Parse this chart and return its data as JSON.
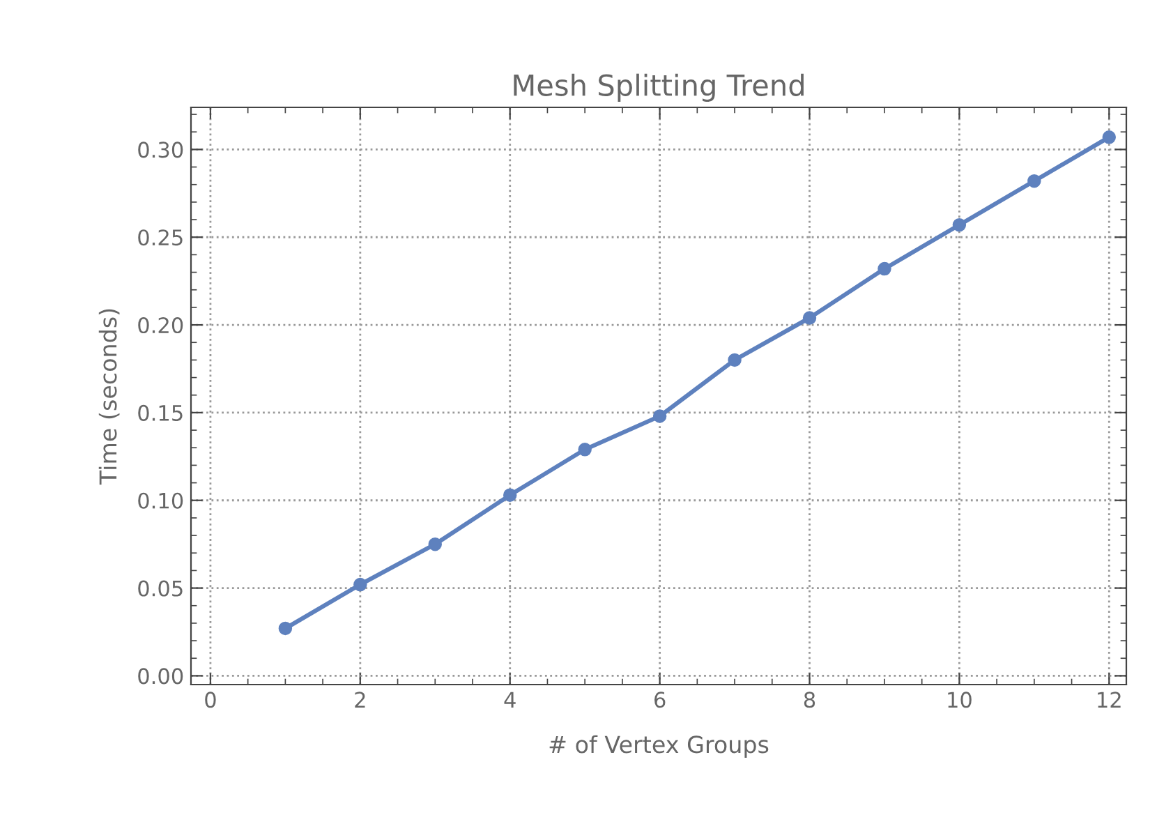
{
  "chart_data": {
    "type": "line",
    "title": "Mesh Splitting Trend",
    "xlabel": "# of Vertex Groups",
    "ylabel": "Time (seconds)",
    "x": [
      1,
      2,
      3,
      4,
      5,
      6,
      7,
      8,
      9,
      10,
      11,
      12
    ],
    "series": [
      {
        "color": "#5e81be",
        "values": [
          0.027,
          0.052,
          0.075,
          0.103,
          0.129,
          0.148,
          0.18,
          0.204,
          0.232,
          0.257,
          0.282,
          0.307
        ]
      }
    ],
    "xlim": [
      -0.26,
      12.23
    ],
    "ylim": [
      -0.005,
      0.324
    ],
    "xticks": [
      0,
      2,
      4,
      6,
      8,
      10,
      12
    ],
    "yticks": [
      {
        "value": 0,
        "label": "0.00"
      },
      {
        "value": 0.05,
        "label": "0.05"
      },
      {
        "value": 0.1,
        "label": "0.10"
      },
      {
        "value": 0.15,
        "label": "0.15"
      },
      {
        "value": 0.2,
        "label": "0.20"
      },
      {
        "value": 0.25,
        "label": "0.25"
      },
      {
        "value": 0.3,
        "label": "0.30"
      }
    ],
    "grid": true,
    "marker": "circle",
    "line_style": "solid",
    "legend": false
  }
}
